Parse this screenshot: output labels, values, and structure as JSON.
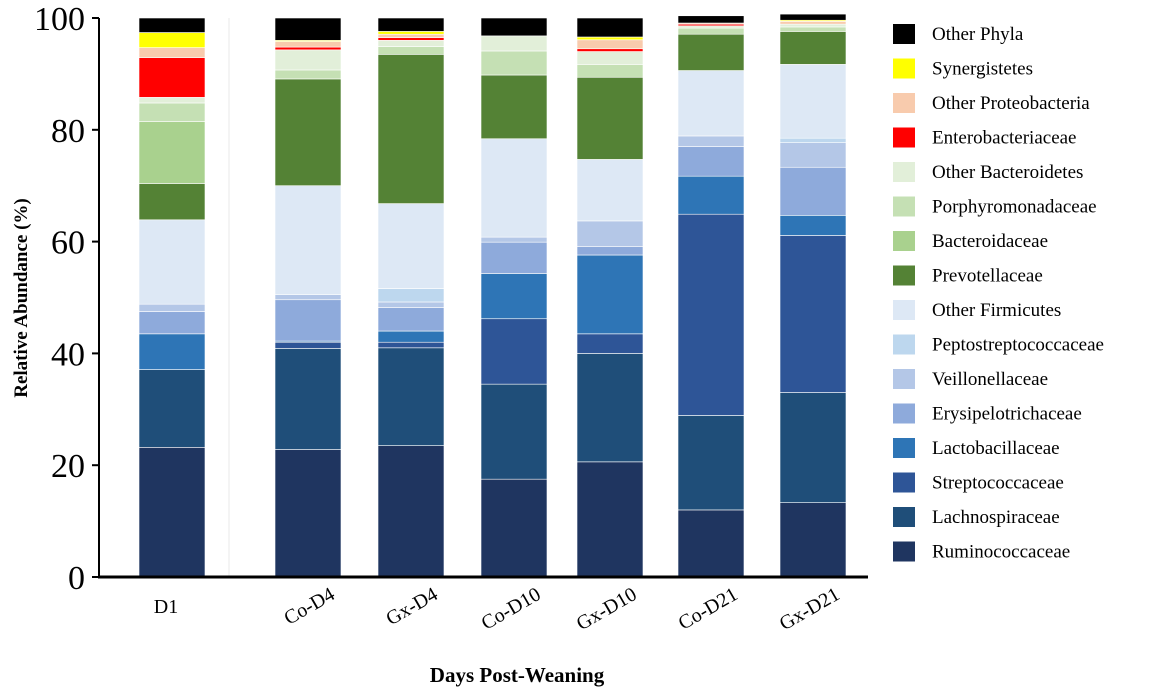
{
  "chart_data": {
    "type": "bar",
    "stacked": true,
    "title": "",
    "xlabel": "Days Post-Weaning",
    "ylabel": "Relative Abundance (%)",
    "ylim": [
      0,
      100
    ],
    "yticks": [
      "0",
      "20",
      "40",
      "60",
      "80",
      "100"
    ],
    "grid": false,
    "legend_position": "right",
    "categories": [
      "D1",
      "Co-D4",
      "Gx-D4",
      "Co-D10",
      "Gx-D10",
      "Co-D21",
      "Gx-D21"
    ],
    "series": [
      {
        "name": "Ruminococcaceae",
        "color": "#1f3560",
        "values": [
          23.2,
          22.8,
          23.5,
          17.5,
          20.6,
          12.0,
          13.3
        ]
      },
      {
        "name": "Lachnospiraceae",
        "color": "#1f4e79",
        "values": [
          13.9,
          18.1,
          17.5,
          17.0,
          19.4,
          16.9,
          19.7
        ]
      },
      {
        "name": "Streptococcaceae",
        "color": "#2e5597",
        "values": [
          0.0,
          1.1,
          1.0,
          11.7,
          3.5,
          36.0,
          28.1
        ]
      },
      {
        "name": "Lactobacillaceae",
        "color": "#2e75b6",
        "values": [
          6.4,
          0.2,
          2.0,
          8.1,
          14.1,
          6.8,
          3.6
        ]
      },
      {
        "name": "Erysipelotrichaceae",
        "color": "#8eaadb",
        "values": [
          4.0,
          7.4,
          4.2,
          5.6,
          1.5,
          5.3,
          8.6
        ]
      },
      {
        "name": "Veillonellaceae",
        "color": "#b4c7e7",
        "values": [
          1.3,
          0.9,
          1.0,
          0.9,
          4.6,
          1.9,
          4.4
        ]
      },
      {
        "name": "Peptostreptococcaceae",
        "color": "#bdd7ee",
        "values": [
          0.0,
          0.0,
          2.4,
          0.0,
          0.0,
          0.0,
          0.8
        ]
      },
      {
        "name": "Other Firmicutes",
        "color": "#dde8f5",
        "values": [
          15.1,
          19.5,
          15.2,
          17.6,
          11.0,
          11.7,
          13.2
        ]
      },
      {
        "name": "Prevotellaceae",
        "color": "#548235",
        "values": [
          6.5,
          19.1,
          26.7,
          11.4,
          14.7,
          6.5,
          5.9
        ]
      },
      {
        "name": "Bacteroidaceae",
        "color": "#a9d18e",
        "values": [
          11.1,
          0.0,
          0.0,
          0.0,
          0.0,
          0.0,
          0.0
        ]
      },
      {
        "name": "Porphyromonadaceae",
        "color": "#c5e0b4",
        "values": [
          3.3,
          1.6,
          1.4,
          4.3,
          2.3,
          1.1,
          0.8
        ]
      },
      {
        "name": "Other Bacteroidetes",
        "color": "#e2efd9",
        "values": [
          1.0,
          3.6,
          1.1,
          2.7,
          2.3,
          0.4,
          0.5
        ]
      },
      {
        "name": "Enterobacteriaceae",
        "color": "#ff0000",
        "values": [
          7.1,
          0.5,
          0.5,
          0.0,
          0.5,
          0.3,
          0.0
        ]
      },
      {
        "name": "Other Proteobacteria",
        "color": "#f8cbad",
        "values": [
          1.8,
          1.0,
          0.6,
          0.0,
          1.6,
          0.2,
          0.5
        ]
      },
      {
        "name": "Synergistetes",
        "color": "#ffff00",
        "values": [
          2.7,
          0.2,
          0.5,
          0.0,
          0.5,
          0.0,
          0.2
        ]
      },
      {
        "name": "Other Phyla",
        "color": "#000000",
        "values": [
          2.6,
          4.0,
          2.4,
          3.2,
          3.4,
          1.3,
          1.1
        ]
      }
    ]
  }
}
